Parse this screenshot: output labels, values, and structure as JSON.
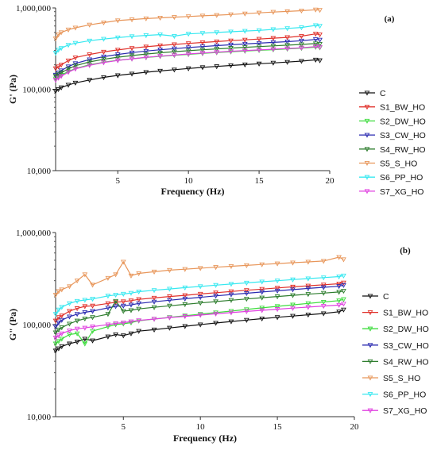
{
  "chart_data": [
    {
      "type": "line",
      "panel_label": "(a)",
      "xlabel": "Frequency (Hz)",
      "ylabel": "G' (Pa)",
      "yscale": "log",
      "xlim": [
        0.6,
        20
      ],
      "ylim": [
        10000,
        1000000
      ],
      "xticks": [
        "5",
        "10",
        "15",
        "20"
      ],
      "yticks": [
        "10,000",
        "100,000",
        "1,000,000"
      ],
      "legend_position": "right",
      "x": [
        0.6,
        0.8,
        1,
        1.5,
        2,
        3,
        4,
        5,
        6,
        7,
        8,
        9,
        10,
        11,
        12,
        13,
        14,
        15,
        16,
        17,
        18,
        19,
        19.3
      ],
      "series": [
        {
          "name": "C",
          "color": "#111111",
          "marker": "triangle-down",
          "values": [
            95000,
            100000,
            105000,
            113000,
            120000,
            130000,
            140000,
            148000,
            155000,
            162000,
            168000,
            174000,
            180000,
            186000,
            191000,
            196000,
            201000,
            206000,
            211000,
            216000,
            222000,
            230000,
            226000
          ]
        },
        {
          "name": "S1_BW_HO",
          "color": "#e0302a",
          "marker": "triangle-down",
          "values": [
            180000,
            190000,
            200000,
            225000,
            245000,
            268000,
            288000,
            305000,
            320000,
            333000,
            345000,
            356000,
            366000,
            376000,
            386000,
            396000,
            405000,
            415000,
            425000,
            435000,
            450000,
            480000,
            470000
          ]
        },
        {
          "name": "S2_DW_HO",
          "color": "#3ddc3d",
          "marker": "triangle-down",
          "values": [
            135000,
            142000,
            150000,
            165000,
            180000,
            200000,
            215000,
            227000,
            237000,
            246000,
            254000,
            262000,
            269000,
            276000,
            283000,
            289000,
            295000,
            301000,
            307000,
            313000,
            320000,
            330000,
            325000
          ]
        },
        {
          "name": "S3_CW_HO",
          "color": "#2a2ab0",
          "marker": "triangle-down",
          "values": [
            150000,
            160000,
            170000,
            190000,
            208000,
            232000,
            252000,
            268000,
            282000,
            295000,
            306000,
            316000,
            326000,
            335000,
            344000,
            353000,
            361000,
            369000,
            377000,
            385000,
            395000,
            410000,
            405000
          ]
        },
        {
          "name": "S4_RW_HO",
          "color": "#2e7d2e",
          "marker": "triangle-down",
          "values": [
            145000,
            152000,
            160000,
            178000,
            195000,
            217000,
            234000,
            248000,
            260000,
            271000,
            281000,
            290000,
            298000,
            306000,
            314000,
            321000,
            328000,
            335000,
            342000,
            349000,
            356000,
            365000,
            360000
          ]
        },
        {
          "name": "S5_S_HO",
          "color": "#e8965a",
          "marker": "triangle-down",
          "values": [
            420000,
            470000,
            500000,
            540000,
            570000,
            620000,
            660000,
            700000,
            720000,
            740000,
            755000,
            770000,
            785000,
            800000,
            815000,
            830000,
            850000,
            870000,
            890000,
            905000,
            925000,
            950000,
            940000
          ]
        },
        {
          "name": "S6_PP_HO",
          "color": "#36e8f0",
          "marker": "triangle-down",
          "values": [
            280000,
            305000,
            320000,
            350000,
            370000,
            395000,
            415000,
            432000,
            447000,
            460000,
            470000,
            450000,
            480000,
            490000,
            500000,
            510000,
            520000,
            530000,
            545000,
            560000,
            575000,
            610000,
            600000
          ]
        },
        {
          "name": "S7_XG_HO",
          "color": "#e040e0",
          "marker": "triangle-down",
          "values": [
            130000,
            138000,
            145000,
            162000,
            178000,
            197000,
            213000,
            226000,
            237000,
            247000,
            256000,
            264000,
            272000,
            279000,
            286000,
            293000,
            299000,
            305000,
            311000,
            317000,
            324000,
            335000,
            330000
          ]
        }
      ]
    },
    {
      "type": "line",
      "panel_label": "(b)",
      "xlabel": "Frequency (Hz)",
      "ylabel": "G\" (Pa)",
      "yscale": "log",
      "xlim": [
        0.6,
        20
      ],
      "ylim": [
        10000,
        1000000
      ],
      "xticks": [
        "5",
        "10",
        "15",
        "20"
      ],
      "yticks": [
        "10,000",
        "100,000",
        "1,000,000"
      ],
      "legend_position": "right",
      "x": [
        0.6,
        0.8,
        1,
        1.5,
        2,
        2.5,
        3,
        4,
        4.5,
        5,
        5.5,
        6,
        7,
        8,
        9,
        10,
        11,
        12,
        13,
        14,
        15,
        16,
        17,
        18,
        19,
        19.3
      ],
      "series": [
        {
          "name": "C",
          "color": "#111111",
          "marker": "triangle-down",
          "values": [
            52000,
            55000,
            58000,
            62000,
            65000,
            70000,
            67000,
            74000,
            78000,
            76000,
            80000,
            85000,
            88000,
            92000,
            96000,
            100000,
            104000,
            108000,
            112000,
            116000,
            120000,
            124000,
            128000,
            132000,
            138000,
            145000
          ]
        },
        {
          "name": "S1_BW_HO",
          "color": "#e0302a",
          "marker": "triangle-down",
          "values": [
            110000,
            120000,
            125000,
            140000,
            150000,
            158000,
            160000,
            170000,
            175000,
            178000,
            182000,
            188000,
            195000,
            202000,
            208000,
            215000,
            222000,
            229000,
            236000,
            243000,
            250000,
            257000,
            264000,
            271000,
            278000,
            285000
          ]
        },
        {
          "name": "S2_DW_HO",
          "color": "#3ddc3d",
          "marker": "triangle-down",
          "values": [
            62000,
            66000,
            70000,
            78000,
            80000,
            62000,
            85000,
            95000,
            100000,
            102000,
            105000,
            110000,
            115000,
            120000,
            125000,
            130000,
            135000,
            140000,
            146000,
            152000,
            158000,
            164000,
            170000,
            176000,
            182000,
            188000
          ]
        },
        {
          "name": "S3_CW_HO",
          "color": "#2a2ab0",
          "marker": "triangle-down",
          "values": [
            95000,
            105000,
            112000,
            122000,
            130000,
            136000,
            140000,
            152000,
            158000,
            160000,
            164000,
            170000,
            177000,
            184000,
            191000,
            198000,
            205000,
            212000,
            219000,
            226000,
            233000,
            240000,
            247000,
            254000,
            261000,
            268000
          ]
        },
        {
          "name": "S4_RW_HO",
          "color": "#2e7d2e",
          "marker": "triangle-down",
          "values": [
            82000,
            88000,
            93000,
            102000,
            110000,
            116000,
            120000,
            130000,
            180000,
            140000,
            143000,
            148000,
            154000,
            160000,
            166000,
            172000,
            178000,
            184000,
            190000,
            196000,
            202000,
            208000,
            214000,
            220000,
            226000,
            232000
          ]
        },
        {
          "name": "S5_S_HO",
          "color": "#e8965a",
          "marker": "triangle-down",
          "values": [
            210000,
            230000,
            240000,
            260000,
            300000,
            350000,
            270000,
            320000,
            350000,
            480000,
            340000,
            360000,
            375000,
            390000,
            400000,
            410000,
            420000,
            430000,
            440000,
            450000,
            460000,
            470000,
            480000,
            490000,
            540000,
            510000
          ]
        },
        {
          "name": "S6_PP_HO",
          "color": "#36e8f0",
          "marker": "triangle-down",
          "values": [
            130000,
            145000,
            155000,
            170000,
            180000,
            185000,
            190000,
            205000,
            210000,
            215000,
            220000,
            228000,
            236000,
            244000,
            252000,
            260000,
            268000,
            276000,
            284000,
            292000,
            300000,
            308000,
            316000,
            324000,
            332000,
            340000
          ]
        },
        {
          "name": "S7_XG_HO",
          "color": "#e040e0",
          "marker": "triangle-down",
          "values": [
            72000,
            76000,
            80000,
            86000,
            90000,
            92000,
            95000,
            100000,
            103000,
            105000,
            108000,
            111000,
            115000,
            119000,
            123000,
            127000,
            131000,
            135000,
            139000,
            143000,
            147000,
            151000,
            155000,
            159000,
            163000,
            168000
          ]
        }
      ]
    }
  ]
}
